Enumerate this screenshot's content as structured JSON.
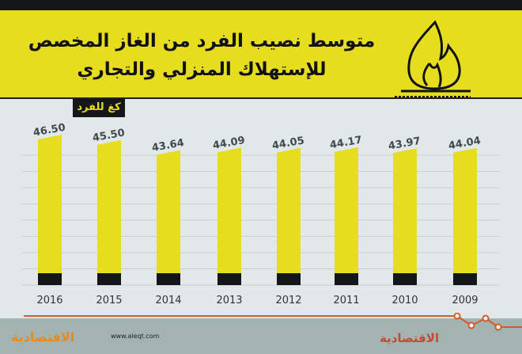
{
  "header": {
    "title_line1": "متوسط نصيب الفرد من الغاز المخصص",
    "title_line2": "للإستهلاك المنزلي والتجاري"
  },
  "chart_data": {
    "type": "bar",
    "title": "متوسط نصيب الفرد من الغاز المخصص للإستهلاك المنزلي والتجاري",
    "ylabel": "كغ للفرد",
    "xlabel": "",
    "categories": [
      "2016",
      "2015",
      "2014",
      "2013",
      "2012",
      "2011",
      "2010",
      "2009"
    ],
    "values": [
      46.5,
      45.5,
      43.64,
      44.09,
      44.05,
      44.17,
      43.97,
      44.04
    ],
    "labels": [
      "46.50",
      "45.50",
      "43.64",
      "44.09",
      "44.05",
      "44.17",
      "43.97",
      "44.04"
    ],
    "ylim": [
      18.4,
      48
    ],
    "grid": true,
    "colors": {
      "bar": "#e6dd1e",
      "base": "#15161a",
      "label": "#3f4a4c"
    }
  },
  "footer": {
    "url": "www.aleqt.com",
    "logo_left": "الاقتصادية",
    "logo_right": "الاقتصادية"
  }
}
